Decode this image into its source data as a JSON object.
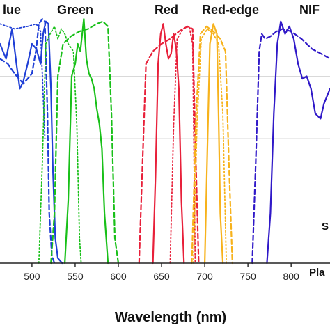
{
  "chart_data": {
    "type": "line",
    "title": "",
    "xlabel": "Wavelength (nm)",
    "ylabel": "",
    "xlim": [
      463,
      845
    ],
    "ylim": [
      0,
      1
    ],
    "x_ticks": [
      500,
      550,
      600,
      650,
      700,
      750,
      800
    ],
    "grid": "horizontal",
    "band_labels": [
      "lue",
      "Green",
      "Red",
      "Red-edge",
      "NIF"
    ],
    "annotations": [
      "S",
      "Pla"
    ],
    "series": [
      {
        "color": "#1f3fd6",
        "style": "solid",
        "x": [
          463,
          470,
          477,
          482,
          486,
          490,
          495,
          500,
          505,
          510,
          513,
          516,
          519,
          522,
          524,
          527,
          530,
          535
        ],
        "y": [
          0.88,
          0.82,
          0.94,
          0.8,
          0.7,
          0.73,
          0.8,
          0.88,
          0.86,
          0.8,
          0.92,
          0.97,
          0.96,
          0.7,
          0.4,
          0.1,
          0.02,
          0
        ]
      },
      {
        "color": "#1f3fd6",
        "style": "dashed",
        "x": [
          463,
          472,
          480,
          490,
          500,
          505,
          508,
          512,
          515,
          518,
          520,
          523,
          526
        ],
        "y": [
          0.82,
          0.8,
          0.76,
          0.72,
          0.76,
          0.86,
          0.96,
          0.98,
          0.97,
          0.6,
          0.2,
          0.03,
          0
        ]
      },
      {
        "color": "#1f3fd6",
        "style": "dotted",
        "x": [
          463,
          480,
          495,
          505,
          510,
          515
        ],
        "y": [
          0.96,
          0.94,
          0.95,
          0.96,
          0.93,
          0.5
        ]
      },
      {
        "color": "#19c019",
        "style": "solid",
        "x": [
          538,
          542,
          546,
          550,
          553,
          556,
          560,
          563,
          566,
          569,
          572,
          575,
          578,
          581,
          584,
          588
        ],
        "y": [
          0,
          0.25,
          0.75,
          0.8,
          0.88,
          0.85,
          0.98,
          0.82,
          0.76,
          0.74,
          0.7,
          0.62,
          0.56,
          0.46,
          0.2,
          0
        ]
      },
      {
        "color": "#19c019",
        "style": "dashed",
        "x": [
          522,
          526,
          530,
          536,
          545,
          555,
          565,
          575,
          582,
          588,
          592,
          596,
          600
        ],
        "y": [
          0,
          0.2,
          0.75,
          0.88,
          0.91,
          0.93,
          0.94,
          0.96,
          0.97,
          0.95,
          0.6,
          0.1,
          0
        ]
      },
      {
        "color": "#19c019",
        "style": "dotted",
        "x": [
          508,
          512,
          516,
          521,
          526,
          530,
          534,
          538,
          542,
          548,
          552,
          555,
          557
        ],
        "y": [
          0,
          0.4,
          0.88,
          0.92,
          0.95,
          0.9,
          0.94,
          0.92,
          0.88,
          0.85,
          0.55,
          0.1,
          0
        ]
      },
      {
        "color": "#e8203a",
        "style": "solid",
        "x": [
          640,
          643,
          646,
          649,
          652,
          655,
          658,
          661,
          664,
          667,
          670,
          673,
          676
        ],
        "y": [
          0,
          0.35,
          0.8,
          0.92,
          0.96,
          0.88,
          0.82,
          0.84,
          0.92,
          0.86,
          0.7,
          0.25,
          0
        ]
      },
      {
        "color": "#e8203a",
        "style": "dashed",
        "x": [
          624,
          628,
          632,
          640,
          650,
          660,
          670,
          680,
          686,
          689,
          693
        ],
        "y": [
          0,
          0.4,
          0.8,
          0.85,
          0.88,
          0.9,
          0.93,
          0.95,
          0.94,
          0.5,
          0
        ]
      },
      {
        "color": "#e8203a",
        "style": "dotted",
        "x": [
          660,
          664,
          668,
          675,
          682,
          686,
          689
        ],
        "y": [
          0,
          0.55,
          0.9,
          0.94,
          0.95,
          0.88,
          0
        ]
      },
      {
        "color": "#f7b21b",
        "style": "solid",
        "x": [
          700,
          703,
          706,
          710,
          714,
          716,
          718,
          721
        ],
        "y": [
          0,
          0.45,
          0.88,
          0.96,
          0.92,
          0.6,
          0.2,
          0
        ]
      },
      {
        "color": "#f7b21b",
        "style": "dashed",
        "x": [
          685,
          690,
          695,
          702,
          710,
          718,
          724,
          728,
          732
        ],
        "y": [
          0,
          0.6,
          0.92,
          0.95,
          0.93,
          0.9,
          0.85,
          0.4,
          0
        ]
      },
      {
        "color": "#f7b21b",
        "style": "dotted",
        "x": [
          687,
          691,
          696,
          703,
          710,
          716,
          721,
          725
        ],
        "y": [
          0,
          0.55,
          0.9,
          0.94,
          0.92,
          0.88,
          0.6,
          0
        ]
      },
      {
        "color": "#3019c8",
        "style": "solid",
        "x": [
          772,
          776,
          780,
          784,
          788,
          793,
          798,
          803,
          808,
          813,
          818,
          823,
          828,
          834,
          838,
          845
        ],
        "y": [
          0,
          0.2,
          0.6,
          0.88,
          0.97,
          0.92,
          0.95,
          0.9,
          0.8,
          0.74,
          0.75,
          0.7,
          0.6,
          0.58,
          0.64,
          0.7
        ]
      },
      {
        "color": "#3019c8",
        "style": "dashed",
        "x": [
          755,
          759,
          763,
          766,
          770,
          776,
          783,
          790,
          800,
          812,
          824,
          835,
          845
        ],
        "y": [
          0,
          0.4,
          0.85,
          0.92,
          0.9,
          0.91,
          0.93,
          0.94,
          0.93,
          0.9,
          0.86,
          0.84,
          0.82
        ]
      }
    ]
  }
}
